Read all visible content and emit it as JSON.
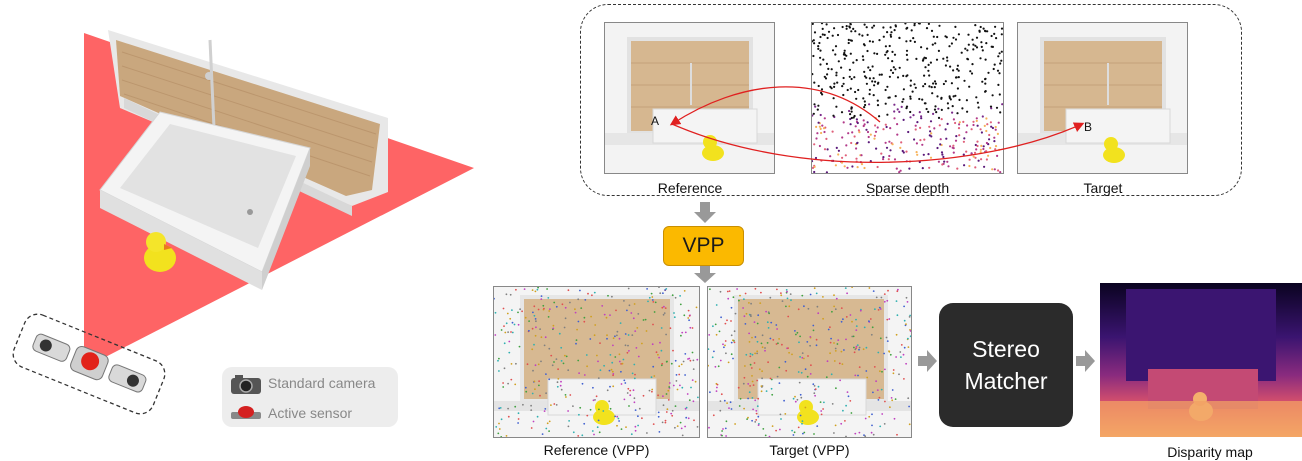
{
  "legend": {
    "camera_label": "Standard camera",
    "sensor_label": "Active sensor"
  },
  "panels": {
    "reference": "Reference",
    "sparse_depth": "Sparse depth",
    "target": "Target",
    "reference_vpp": "Reference (VPP)",
    "target_vpp": "Target (VPP)",
    "disparity_map": "Disparity map"
  },
  "points": {
    "a": "A",
    "b": "B"
  },
  "blocks": {
    "vpp": "VPP",
    "stereo_line1": "Stereo",
    "stereo_line2": "Matcher"
  },
  "colors": {
    "projection": "#fe6465",
    "vpp_block": "#fbb900",
    "stereo_block": "#2b2b2b",
    "arrow": "#e02020"
  }
}
